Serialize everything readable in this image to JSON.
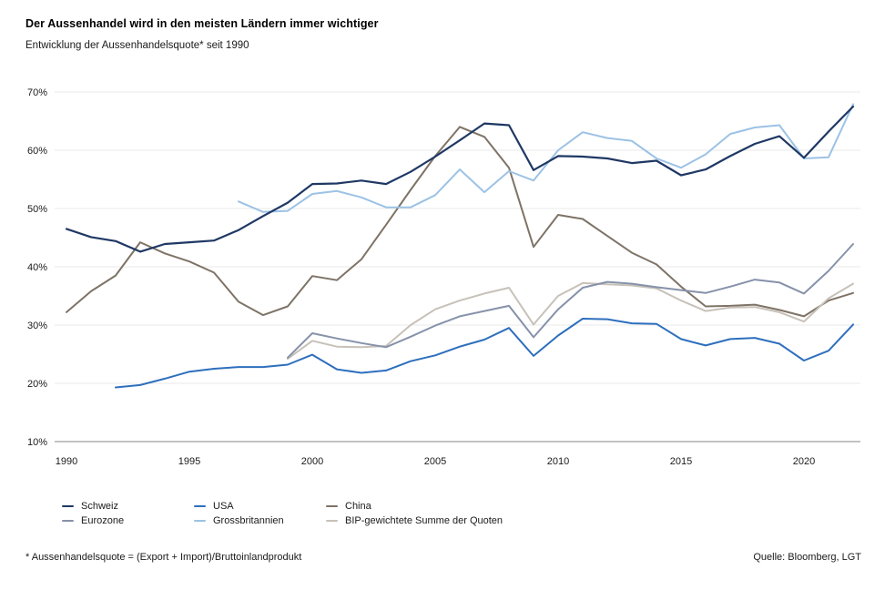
{
  "header": {
    "title": "Der Aussenhandel wird in den meisten Ländern immer wichtiger",
    "subtitle": "Entwicklung der Aussenhandelsquote* seit 1990"
  },
  "chart_data": {
    "type": "line",
    "title": "Entwicklung der Aussenhandelsquote seit 1990",
    "x_axis": {
      "min": 1990,
      "max": 2022,
      "ticks": [
        1990,
        1995,
        2000,
        2005,
        2010,
        2015,
        2020
      ]
    },
    "y_axis": {
      "min": 10,
      "max": 70,
      "unit": "%",
      "ticks": [
        70,
        60,
        50,
        40,
        30,
        20,
        10
      ],
      "tick_labels": [
        "70%",
        "60%",
        "50%",
        "40%",
        "30%",
        "20%",
        "10%"
      ]
    },
    "grid": "horizontal-only",
    "legend_position": "bottom",
    "series": [
      {
        "name": "Schweiz",
        "color": "#1f3864",
        "start_year": 1990,
        "values": [
          46.5,
          45.1,
          44.4,
          42.6,
          43.9,
          44.2,
          44.5,
          46.3,
          48.7,
          51.0,
          54.2,
          54.3,
          54.8,
          54.2,
          56.3,
          58.9,
          61.7,
          64.6,
          64.3,
          56.6,
          59.0,
          58.9,
          58.6,
          57.8,
          58.2,
          55.7,
          56.7,
          59.0,
          61.1,
          62.4,
          58.7,
          63.2,
          67.5
        ]
      },
      {
        "name": "Eurozone",
        "color": "#8692aa",
        "start_year": 1999,
        "values": [
          24.4,
          28.6,
          27.7,
          26.9,
          26.2,
          28.0,
          29.9,
          31.5,
          32.4,
          33.3,
          27.9,
          32.7,
          36.4,
          37.4,
          37.1,
          36.5,
          36.0,
          35.5,
          36.6,
          37.8,
          37.3,
          35.4,
          39.3,
          43.9
        ]
      },
      {
        "name": "USA",
        "color": "#2e6fbd",
        "start_year": 1992,
        "values": [
          19.3,
          19.7,
          20.8,
          22.0,
          22.5,
          22.8,
          22.8,
          23.2,
          24.9,
          22.4,
          21.8,
          22.2,
          23.8,
          24.8,
          26.3,
          27.5,
          29.5,
          24.7,
          28.2,
          31.1,
          31.0,
          30.3,
          30.2,
          27.6,
          26.5,
          27.6,
          27.8,
          26.8,
          23.9,
          25.6,
          30.1
        ]
      },
      {
        "name": "Grossbritannien",
        "color": "#9cc2e5",
        "start_year": 1997,
        "values": [
          51.2,
          49.4,
          49.6,
          52.5,
          53.0,
          51.9,
          50.2,
          50.2,
          52.3,
          56.7,
          52.8,
          56.4,
          54.8,
          60.0,
          63.1,
          62.1,
          61.6,
          58.6,
          57.0,
          59.3,
          62.8,
          63.9,
          64.3,
          58.6,
          58.8,
          67.9
        ]
      },
      {
        "name": "China",
        "color": "#7e7366",
        "start_year": 1990,
        "values": [
          32.2,
          35.8,
          38.5,
          44.2,
          42.3,
          40.9,
          39.0,
          34.0,
          31.7,
          33.2,
          38.4,
          37.7,
          41.3,
          47.2,
          53.2,
          59.0,
          64.0,
          62.3,
          57.0,
          43.4,
          48.9,
          48.2,
          45.3,
          42.4,
          40.4,
          36.6,
          33.2,
          33.3,
          33.5,
          32.6,
          31.5,
          34.2,
          35.5
        ]
      },
      {
        "name": "BIP-gewichtete Summe der Quoten",
        "color": "#c7c1b8",
        "start_year": 1999,
        "values": [
          24.2,
          27.3,
          26.3,
          26.2,
          26.4,
          30.0,
          32.7,
          34.2,
          35.4,
          36.4,
          30.1,
          35.0,
          37.2,
          37.0,
          36.8,
          36.3,
          34.2,
          32.4,
          33.0,
          33.1,
          32.2,
          30.6,
          34.6,
          37.1
        ]
      }
    ]
  },
  "legend": {
    "columns": [
      [
        0,
        1
      ],
      [
        2,
        3
      ],
      [
        4,
        5
      ]
    ]
  },
  "footer": {
    "note": "* Aussenhandelsquote = (Export + Import)/Bruttoinlandprodukt",
    "source": "Quelle: Bloomberg, LGT"
  },
  "colors": {
    "grid": "#eaeaea",
    "axis": "#9e9e9e",
    "text": "#1a1a1a"
  }
}
